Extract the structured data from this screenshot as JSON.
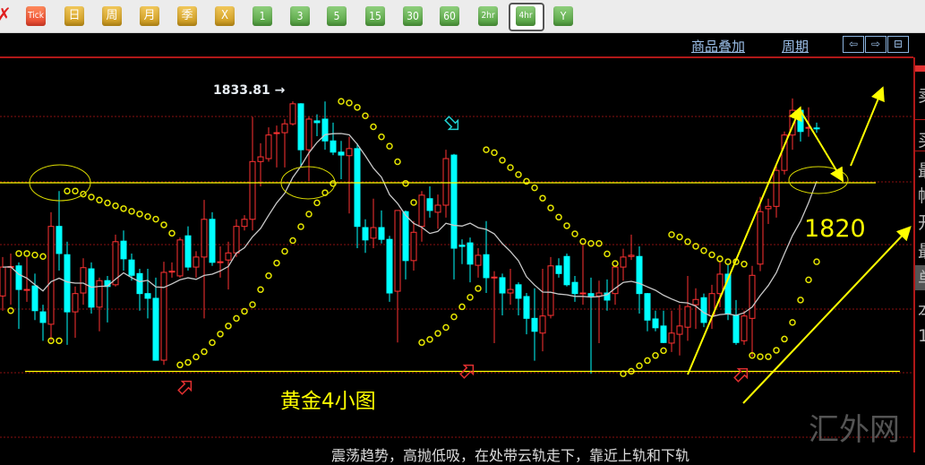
{
  "toolbar": {
    "close_icon": "red-x-icon",
    "buttons": [
      {
        "label": "Tick",
        "style": "red"
      },
      {
        "label": "日",
        "style": "gold"
      },
      {
        "label": "周",
        "style": "gold"
      },
      {
        "label": "月",
        "style": "gold"
      },
      {
        "label": "季",
        "style": "gold"
      },
      {
        "label": "X",
        "style": "gold"
      },
      {
        "label": "1",
        "style": "green"
      },
      {
        "label": "3",
        "style": "green"
      },
      {
        "label": "5",
        "style": "green"
      },
      {
        "label": "15",
        "style": "green"
      },
      {
        "label": "30",
        "style": "green"
      },
      {
        "label": "60",
        "style": "green"
      },
      {
        "label": "2hr",
        "style": "green"
      },
      {
        "label": "4hr",
        "style": "green",
        "selected": true
      },
      {
        "label": "Y",
        "style": "green"
      }
    ]
  },
  "header": {
    "overlay_link": "商品叠加",
    "period_link": "周期",
    "nav": [
      {
        "icon": "arrow-left-icon",
        "glyph": "⇦"
      },
      {
        "icon": "arrow-right-icon",
        "glyph": "⇨"
      },
      {
        "icon": "layout-icon",
        "glyph": "⊟"
      }
    ]
  },
  "right_panel": {
    "labels": [
      "卖",
      "买",
      "最",
      "幅",
      "开",
      "最",
      "单",
      "本",
      "1"
    ]
  },
  "annotations": {
    "title": "黄金4小图",
    "level": "1820",
    "high_label": "1833.81 →",
    "watermark": "汇外网",
    "bottom_text": "震荡趋势，高抛低吸，在处带云轨走下，靠近上轨和下轨"
  },
  "chart_data": {
    "type": "candlestick",
    "timeframe": "4hr",
    "fields": [
      "open",
      "high",
      "low",
      "close"
    ],
    "colors": {
      "up": "#ff3232",
      "down": "#00ffff",
      "ma": "#c8c8c8",
      "sar": "#e6e600",
      "annotation": "#ffff00",
      "grid": "#8a1010"
    },
    "horizontal_levels": [
      1820,
      1788
    ],
    "labeled_high": 1833.81,
    "candles": [
      [
        1800.8,
        1807.4,
        1798.3,
        1805.7
      ],
      [
        1805.7,
        1808.0,
        1799.3,
        1805.8
      ],
      [
        1805.9,
        1806.5,
        1795.2,
        1801.9
      ],
      [
        1801.8,
        1807.4,
        1799.8,
        1801.9
      ],
      [
        1802.5,
        1804.6,
        1796.7,
        1798.3
      ],
      [
        1798.1,
        1799.3,
        1793.2,
        1796.3
      ],
      [
        1796.0,
        1815.0,
        1793.2,
        1812.6
      ],
      [
        1812.6,
        1818.6,
        1805.1,
        1808.0
      ],
      [
        1807.8,
        1810.0,
        1792.5,
        1798.1
      ],
      [
        1798.1,
        1802.4,
        1793.7,
        1801.2
      ],
      [
        1801.3,
        1807.2,
        1799.3,
        1805.6
      ],
      [
        1805.4,
        1806.5,
        1797.8,
        1798.9
      ],
      [
        1798.9,
        1803.9,
        1794.8,
        1803.4
      ],
      [
        1803.4,
        1804.2,
        1796.3,
        1802.4
      ],
      [
        1802.7,
        1811.2,
        1802.4,
        1810.0
      ],
      [
        1810.1,
        1811.9,
        1805.1,
        1807.1
      ],
      [
        1806.9,
        1808.0,
        1803.4,
        1804.3
      ],
      [
        1804.6,
        1805.4,
        1798.3,
        1801.2
      ],
      [
        1801.2,
        1805.4,
        1797.0,
        1800.4
      ],
      [
        1800.4,
        1803.9,
        1789.8,
        1789.9
      ],
      [
        1789.9,
        1806.6,
        1789.1,
        1804.8
      ],
      [
        1804.9,
        1806.5,
        1803.9,
        1805.0
      ],
      [
        1804.2,
        1810.7,
        1803.9,
        1810.3
      ],
      [
        1811.0,
        1812.6,
        1805.1,
        1805.7
      ],
      [
        1805.7,
        1808.4,
        1803.9,
        1807.4
      ],
      [
        1807.4,
        1817.1,
        1797.0,
        1813.8
      ],
      [
        1813.8,
        1815.0,
        1805.9,
        1806.5
      ],
      [
        1806.5,
        1809.2,
        1803.9,
        1806.6
      ],
      [
        1806.9,
        1810.0,
        1801.9,
        1808.1
      ],
      [
        1808.1,
        1813.8,
        1807.4,
        1812.6
      ],
      [
        1812.6,
        1814.5,
        1811.9,
        1813.8
      ],
      [
        1813.8,
        1831.2,
        1811.9,
        1823.6
      ],
      [
        1823.6,
        1826.7,
        1819.4,
        1824.4
      ],
      [
        1824.1,
        1829.4,
        1823.6,
        1828.1
      ],
      [
        1828.4,
        1829.7,
        1822.6,
        1828.5
      ],
      [
        1828.5,
        1830.8,
        1822.6,
        1830.0
      ],
      [
        1830.0,
        1833.81,
        1829.7,
        1833.4
      ],
      [
        1833.4,
        1833.5,
        1822.6,
        1825.6
      ],
      [
        1825.6,
        1831.2,
        1820.3,
        1830.8
      ],
      [
        1830.5,
        1831.6,
        1827.9,
        1830.2
      ],
      [
        1830.8,
        1833.8,
        1825.6,
        1827.1
      ],
      [
        1827.1,
        1830.2,
        1824.7,
        1825.2
      ],
      [
        1825.2,
        1827.1,
        1820.6,
        1824.7
      ],
      [
        1824.6,
        1827.8,
        1814.8,
        1825.8
      ],
      [
        1825.8,
        1826.7,
        1808.9,
        1812.6
      ],
      [
        1812.4,
        1813.8,
        1808.1,
        1810.3
      ],
      [
        1810.6,
        1817.3,
        1808.9,
        1812.4
      ],
      [
        1812.4,
        1815.3,
        1809.7,
        1810.4
      ],
      [
        1810.4,
        1811.0,
        1799.8,
        1801.3
      ],
      [
        1801.6,
        1815.3,
        1792.9,
        1815.3
      ],
      [
        1815.1,
        1815.3,
        1803.6,
        1806.8
      ],
      [
        1806.8,
        1813.5,
        1805.1,
        1811.6
      ],
      [
        1812.6,
        1818.6,
        1810.0,
        1817.9
      ],
      [
        1817.3,
        1819.4,
        1814.1,
        1815.3
      ],
      [
        1815.0,
        1818.0,
        1812.2,
        1816.2
      ],
      [
        1816.2,
        1825.6,
        1814.1,
        1824.1
      ],
      [
        1824.7,
        1824.9,
        1803.6,
        1808.9
      ],
      [
        1809.4,
        1810.4,
        1806.2,
        1809.2
      ],
      [
        1809.8,
        1810.7,
        1803.1,
        1806.2
      ],
      [
        1806.0,
        1808.9,
        1803.9,
        1807.7
      ],
      [
        1807.8,
        1813.5,
        1801.3,
        1803.9
      ],
      [
        1803.9,
        1805.0,
        1792.8,
        1804.0
      ],
      [
        1803.9,
        1804.6,
        1797.5,
        1801.3
      ],
      [
        1801.3,
        1805.4,
        1799.3,
        1801.9
      ],
      [
        1802.7,
        1803.1,
        1797.5,
        1800.4
      ],
      [
        1800.7,
        1801.3,
        1794.3,
        1797.0
      ],
      [
        1797.0,
        1802.1,
        1789.8,
        1794.8
      ],
      [
        1794.5,
        1805.4,
        1791.4,
        1797.4
      ],
      [
        1797.5,
        1807.4,
        1797.0,
        1805.9
      ],
      [
        1805.9,
        1807.2,
        1803.9,
        1804.6
      ],
      [
        1807.5,
        1808.0,
        1802.4,
        1802.7
      ],
      [
        1803.1,
        1804.2,
        1799.8,
        1801.2
      ],
      [
        1801.2,
        1809.7,
        1799.3,
        1801.3
      ],
      [
        1801.2,
        1803.9,
        1787.6,
        1800.8
      ],
      [
        1800.8,
        1803.4,
        1792.8,
        1801.3
      ],
      [
        1801.3,
        1803.6,
        1798.3,
        1800.1
      ],
      [
        1801.2,
        1805.9,
        1799.3,
        1805.7
      ],
      [
        1805.7,
        1808.8,
        1803.4,
        1807.4
      ],
      [
        1807.5,
        1811.2,
        1806.9,
        1807.7
      ],
      [
        1807.5,
        1809.2,
        1797.8,
        1801.2
      ],
      [
        1801.2,
        1801.3,
        1794.8,
        1796.7
      ],
      [
        1796.9,
        1798.3,
        1794.8,
        1795.4
      ],
      [
        1795.7,
        1798.3,
        1792.8,
        1792.9
      ],
      [
        1792.8,
        1798.3,
        1791.3,
        1794.5
      ],
      [
        1794.3,
        1799.3,
        1790.7,
        1795.7
      ],
      [
        1795.5,
        1804.2,
        1793.2,
        1799.0
      ],
      [
        1799.3,
        1802.1,
        1795.2,
        1800.2
      ],
      [
        1800.5,
        1801.2,
        1795.5,
        1796.3
      ],
      [
        1797.4,
        1802.7,
        1795.2,
        1801.2
      ],
      [
        1801.2,
        1806.6,
        1798.9,
        1804.5
      ],
      [
        1804.5,
        1806.2,
        1796.7,
        1797.8
      ],
      [
        1797.5,
        1800.1,
        1792.5,
        1792.9
      ],
      [
        1793.2,
        1798.3,
        1792.5,
        1797.4
      ],
      [
        1797.0,
        1805.9,
        1790.5,
        1804.3
      ],
      [
        1806.2,
        1817.6,
        1805.0,
        1815.1
      ],
      [
        1815.6,
        1817.3,
        1813.0,
        1816.0
      ],
      [
        1816.0,
        1823.3,
        1814.1,
        1822.1
      ],
      [
        1822.1,
        1828.7,
        1821.4,
        1828.1
      ],
      [
        1828.1,
        1834.3,
        1825.6,
        1832.3
      ],
      [
        1832.3,
        1832.8,
        1827.0,
        1828.7
      ],
      [
        1829.3,
        1832.8,
        1827.8,
        1829.4
      ],
      [
        1829.3,
        1830.2,
        1828.5,
        1829.2
      ]
    ]
  }
}
